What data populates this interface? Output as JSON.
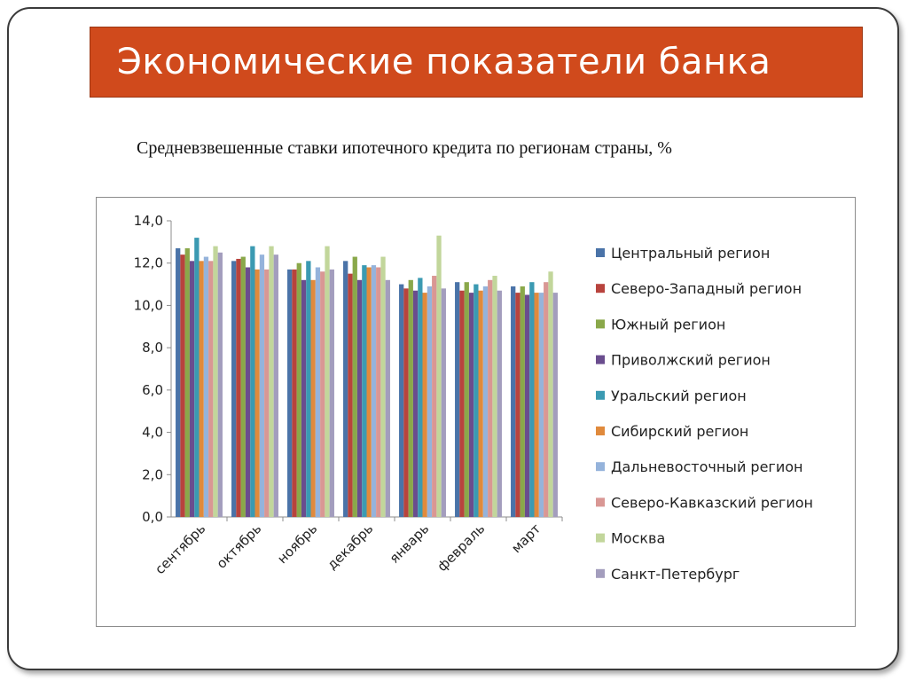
{
  "title": "Экономические показатели банка",
  "chart_data": {
    "type": "bar",
    "title": "Средневзвешенные ставки ипотечного кредита по регионам страны, %",
    "xlabel": "",
    "ylabel": "",
    "ylim": [
      0,
      14
    ],
    "yticks": [
      "0,0",
      "2,0",
      "4,0",
      "6,0",
      "8,0",
      "10,0",
      "12,0",
      "14,0"
    ],
    "legend_position": "right",
    "grid": false,
    "categories": [
      "сентябрь",
      "октябрь",
      "ноябрь",
      "декабрь",
      "январь",
      "февраль",
      "март"
    ],
    "series": [
      {
        "name": "Центральный регион",
        "color": "#4a73a8",
        "values": [
          12.7,
          12.1,
          11.7,
          12.1,
          11.0,
          11.1,
          10.9
        ]
      },
      {
        "name": "Северо-Западный регион",
        "color": "#b8433d",
        "values": [
          12.4,
          12.2,
          11.7,
          11.5,
          10.8,
          10.7,
          10.6
        ]
      },
      {
        "name": "Южный регион",
        "color": "#8aa84a",
        "values": [
          12.7,
          12.3,
          12.0,
          12.3,
          11.2,
          11.1,
          10.9
        ]
      },
      {
        "name": "Приволжский регион",
        "color": "#6a4d8e",
        "values": [
          12.1,
          11.8,
          11.2,
          11.2,
          10.7,
          10.6,
          10.5
        ]
      },
      {
        "name": "Уральский регион",
        "color": "#3b9ab2",
        "values": [
          13.2,
          12.8,
          12.1,
          11.9,
          11.3,
          11.0,
          11.1
        ]
      },
      {
        "name": "Сибирский регион",
        "color": "#e08a3c",
        "values": [
          12.1,
          11.7,
          11.2,
          11.8,
          10.6,
          10.7,
          10.6
        ]
      },
      {
        "name": "Дальневосточный регион",
        "color": "#95b3db",
        "values": [
          12.3,
          12.4,
          11.8,
          11.9,
          10.9,
          10.9,
          10.6
        ]
      },
      {
        "name": "Северо-Кавказский регион",
        "color": "#d99794",
        "values": [
          12.1,
          11.7,
          11.6,
          11.8,
          11.4,
          11.2,
          11.1
        ]
      },
      {
        "name": "Москва",
        "color": "#c2d69b",
        "values": [
          12.8,
          12.8,
          12.8,
          12.3,
          13.3,
          11.4,
          11.6
        ]
      },
      {
        "name": "Санкт-Петербург",
        "color": "#a39dbd",
        "values": [
          12.5,
          12.4,
          11.7,
          11.2,
          10.8,
          10.7,
          10.6
        ]
      }
    ]
  }
}
